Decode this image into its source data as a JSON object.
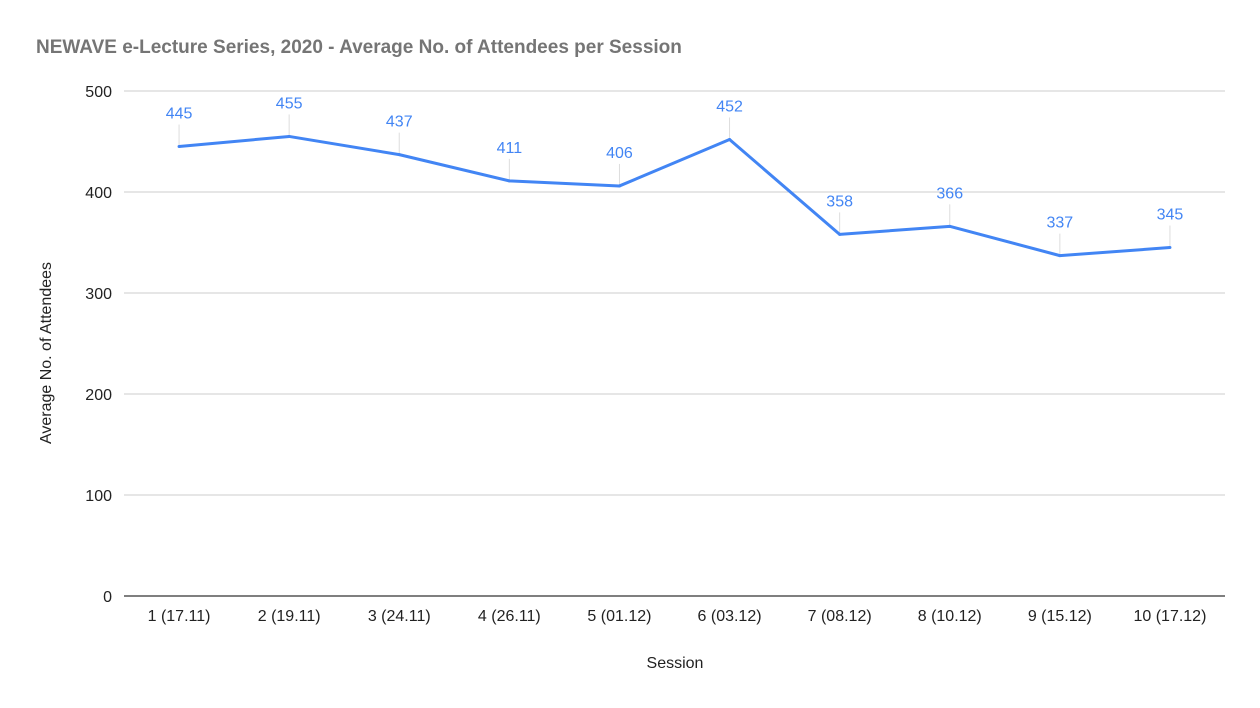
{
  "chart_data": {
    "type": "line",
    "title": "NEWAVE e-Lecture Series, 2020 - Average No. of Attendees per Session",
    "xlabel": "Session",
    "ylabel": "Average No. of Attendees",
    "categories": [
      "1 (17.11)",
      "2 (19.11)",
      "3 (24.11)",
      "4 (26.11)",
      "5 (01.12)",
      "6 (03.12)",
      "7 (08.12)",
      "8 (10.12)",
      "9 (15.12)",
      "10 (17.12)"
    ],
    "series": [
      {
        "name": "Average No. of Attendees",
        "values": [
          445,
          455,
          437,
          411,
          406,
          452,
          358,
          366,
          337,
          345
        ],
        "color": "#4285f4"
      }
    ],
    "ylim": [
      0,
      500
    ],
    "yticks": [
      0,
      100,
      200,
      300,
      400,
      500
    ],
    "grid": true,
    "legend": "none",
    "data_labels": true
  }
}
